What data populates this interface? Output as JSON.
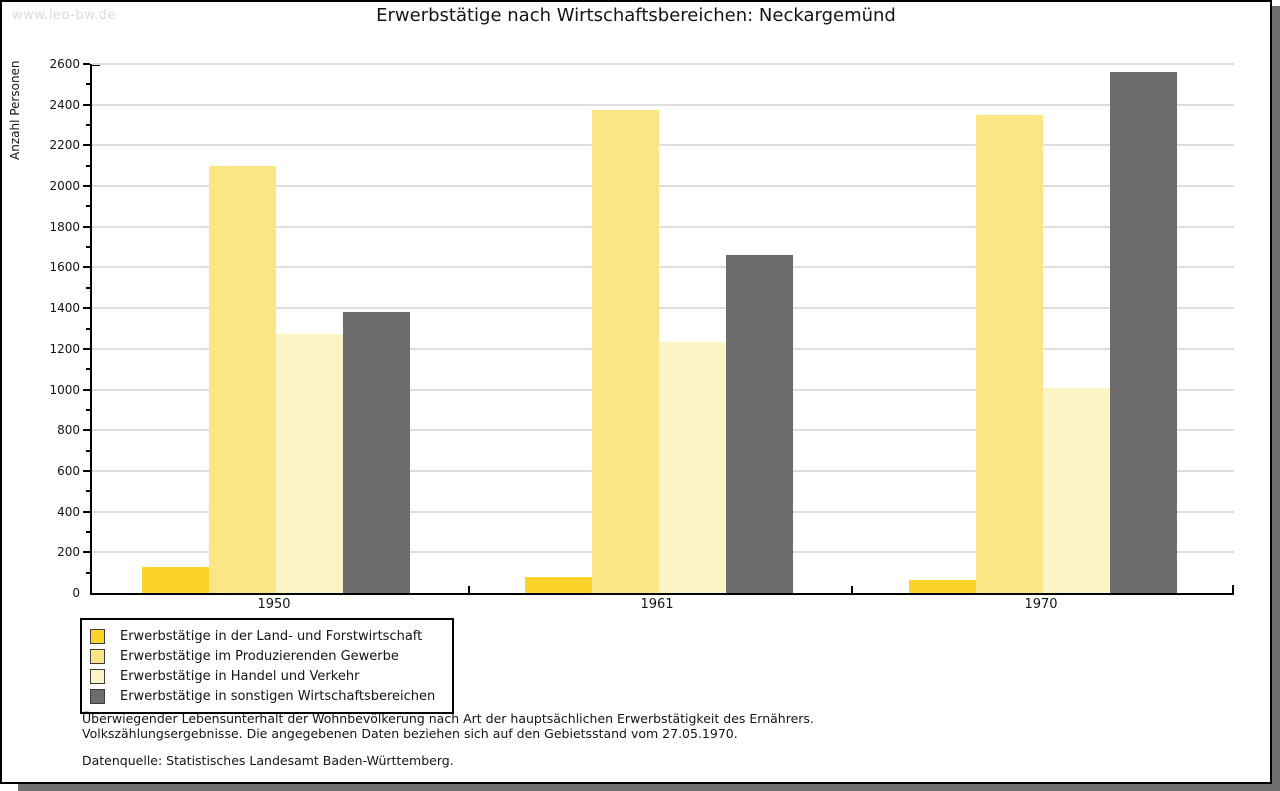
{
  "watermark": "www.leo-bw.de",
  "title": "Erwerbstätige nach Wirtschaftsbereichen: Neckargemünd",
  "chart_data": {
    "type": "bar",
    "title": "Erwerbstätige nach Wirtschaftsbereichen: Neckargemünd",
    "xlabel": "",
    "ylabel": "Anzahl Personen",
    "ylim": [
      0,
      2600
    ],
    "ytick_step": 200,
    "yticks": [
      "0",
      "200",
      "400",
      "600",
      "800",
      "1000",
      "1200",
      "1400",
      "1600",
      "1800",
      "2000",
      "2200",
      "2400",
      "2600"
    ],
    "grid": "horizontal",
    "legend_position": "bottom-left",
    "categories": [
      "1950",
      "1961",
      "1970"
    ],
    "series": [
      {
        "name": "Erwerbstätige in der Land- und Forstwirtschaft",
        "color": "#fbd32b",
        "values": [
          130,
          80,
          65
        ]
      },
      {
        "name": "Erwerbstätige im Produzierenden Gewerbe",
        "color": "#fce585",
        "values": [
          2100,
          2375,
          2350
        ]
      },
      {
        "name": "Erwerbstätige in Handel und Verkehr",
        "color": "#fcf3c6",
        "values": [
          1275,
          1235,
          1010
        ]
      },
      {
        "name": "Erwerbstätige in sonstigen Wirtschaftsbereichen",
        "color": "#6c6c6c",
        "values": [
          1380,
          1660,
          2560
        ]
      }
    ]
  },
  "footnote": {
    "line1": "Überwiegender Lebensunterhalt der Wohnbevölkerung nach Art der hauptsächlichen Erwerbstätigkeit des Ernährers.",
    "line2": "Volkszählungsergebnisse. Die angegebenen Daten beziehen sich auf den Gebietsstand vom 27.05.1970.",
    "source": "Datenquelle: Statistisches Landesamt Baden-Württemberg."
  }
}
